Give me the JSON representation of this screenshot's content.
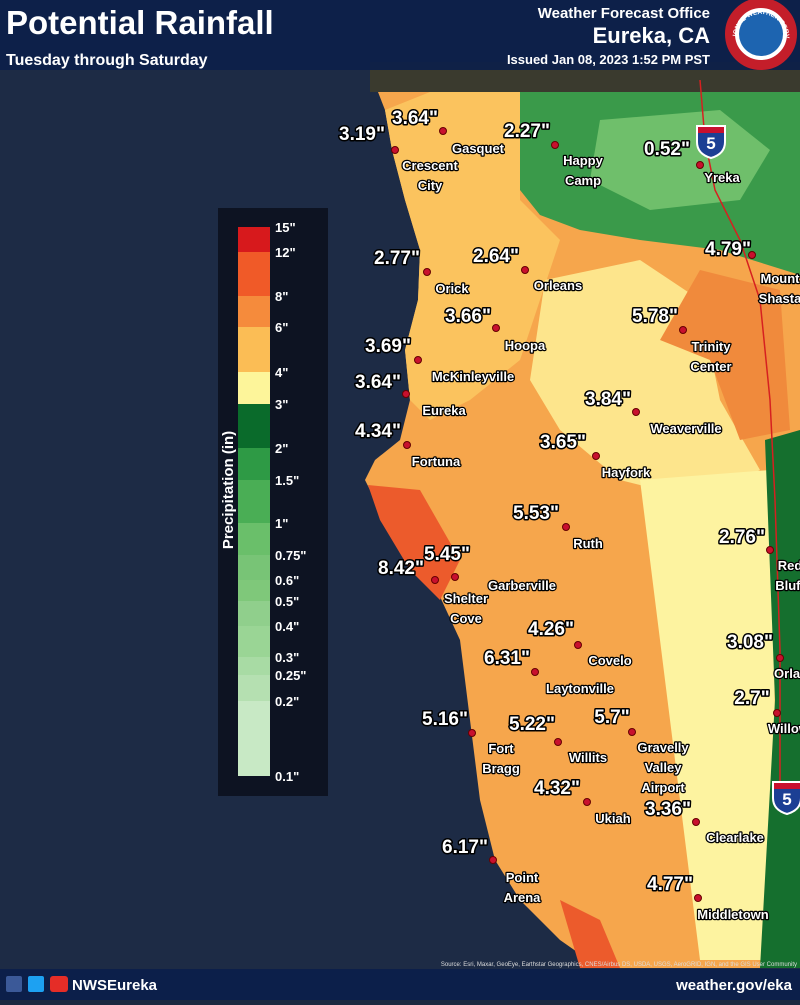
{
  "header": {
    "title": "Potential Rainfall",
    "subtitle": "Tuesday through Saturday",
    "office": "Weather Forecast Office",
    "location": "Eureka, CA",
    "issued": "Issued Jan 08, 2023 1:52 PM PST",
    "logo_text": "NATIONAL WEATHER SERVICE"
  },
  "legend": {
    "title": "Precipitation (in)",
    "labels": [
      "15\"",
      "12\"",
      "8\"",
      "6\"",
      "4\"",
      "3\"",
      "2\"",
      "1.5\"",
      "1\"",
      "0.75\"",
      "0.6\"",
      "0.5\"",
      "0.4\"",
      "0.3\"",
      "0.25\"",
      "0.2\"",
      "0.1\""
    ]
  },
  "highways": [
    "5",
    "5"
  ],
  "stations": [
    {
      "value": "3.64\"",
      "name_lines": [
        "Gasquet"
      ]
    },
    {
      "value": "3.19\"",
      "name_lines": [
        "Crescent",
        "City"
      ]
    },
    {
      "value": "2.27\"",
      "name_lines": [
        "Happy",
        "Camp"
      ]
    },
    {
      "value": "0.52\"",
      "name_lines": [
        "Yreka"
      ]
    },
    {
      "value": "4.79\"",
      "name_lines": [
        "Mount",
        "Shasta"
      ]
    },
    {
      "value": "2.77\"",
      "name_lines": [
        "Orick"
      ]
    },
    {
      "value": "2.64\"",
      "name_lines": [
        "Orleans"
      ]
    },
    {
      "value": "3.66\"",
      "name_lines": [
        "Hoopa"
      ]
    },
    {
      "value": "5.78\"",
      "name_lines": [
        "Trinity",
        "Center"
      ]
    },
    {
      "value": "3.69\"",
      "name_lines": [
        "McKinleyville"
      ]
    },
    {
      "value": "3.64\"",
      "name_lines": [
        "Eureka"
      ]
    },
    {
      "value": "3.84\"",
      "name_lines": [
        "Weaverville"
      ]
    },
    {
      "value": "4.34\"",
      "name_lines": [
        "Fortuna"
      ]
    },
    {
      "value": "3.65\"",
      "name_lines": [
        "Hayfork"
      ]
    },
    {
      "value": "5.53\"",
      "name_lines": [
        "Ruth"
      ]
    },
    {
      "value": "2.76\"",
      "name_lines": [
        "Red",
        "Bluff"
      ]
    },
    {
      "value": "5.45\"",
      "name_lines": [
        "Garberville"
      ]
    },
    {
      "value": "8.42\"",
      "name_lines": [
        "Shelter",
        "Cove"
      ]
    },
    {
      "value": "4.26\"",
      "name_lines": [
        "Covelo"
      ]
    },
    {
      "value": "3.08\"",
      "name_lines": [
        "Orland"
      ]
    },
    {
      "value": "6.31\"",
      "name_lines": [
        "Laytonville"
      ]
    },
    {
      "value": "2.7\"",
      "name_lines": [
        "Willows"
      ]
    },
    {
      "value": "5.16\"",
      "name_lines": [
        "Fort",
        "Bragg"
      ]
    },
    {
      "value": "5.22\"",
      "name_lines": [
        "Willits"
      ]
    },
    {
      "value": "5.7\"",
      "name_lines": [
        "Gravelly",
        "Valley",
        "Airport"
      ]
    },
    {
      "value": "4.32\"",
      "name_lines": [
        "Ukiah"
      ]
    },
    {
      "value": "3.36\"",
      "name_lines": [
        "Clearlake"
      ]
    },
    {
      "value": "6.17\"",
      "name_lines": [
        "Point",
        "Arena"
      ]
    },
    {
      "value": "4.77\"",
      "name_lines": [
        "Middletown"
      ]
    }
  ],
  "attribution": "Source: Esri, Maxar, GeoEye, Earthstar Geographics, CNES/Airbus DS, USDA, USGS, AeroGRID, IGN, and the GIS User Community",
  "footer": {
    "handle": "NWSEureka",
    "url": "weather.gov/eka"
  }
}
